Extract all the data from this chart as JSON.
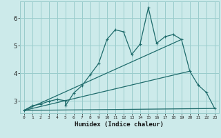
{
  "xlabel": "Humidex (Indice chaleur)",
  "bg_color": "#cceaea",
  "grid_color": "#99cccc",
  "line_color": "#1e6b6b",
  "xlim": [
    -0.5,
    23.5
  ],
  "ylim": [
    2.55,
    6.6
  ],
  "yticks": [
    3,
    4,
    5,
    6
  ],
  "xticks": [
    0,
    1,
    2,
    3,
    4,
    5,
    6,
    7,
    8,
    9,
    10,
    11,
    12,
    13,
    14,
    15,
    16,
    17,
    18,
    19,
    20,
    21,
    22,
    23
  ],
  "series1_x": [
    0,
    1,
    2,
    3,
    4,
    5,
    5,
    6,
    7,
    8,
    9,
    10,
    11,
    12,
    13,
    14,
    15,
    16,
    17,
    18,
    19,
    20,
    21,
    22,
    23
  ],
  "series1_y": [
    2.65,
    2.82,
    2.88,
    2.98,
    3.05,
    3.0,
    2.82,
    3.28,
    3.55,
    3.95,
    4.35,
    5.22,
    5.57,
    5.5,
    4.68,
    5.05,
    6.37,
    5.08,
    5.32,
    5.4,
    5.22,
    4.07,
    3.57,
    3.3,
    2.72
  ],
  "line1_x": [
    0,
    19
  ],
  "line1_y": [
    2.65,
    5.22
  ],
  "line2_x": [
    0,
    20
  ],
  "line2_y": [
    2.65,
    4.07
  ],
  "line3_x": [
    0,
    23
  ],
  "line3_y": [
    2.65,
    2.72
  ],
  "marker_size": 2.5,
  "line_width": 0.9
}
